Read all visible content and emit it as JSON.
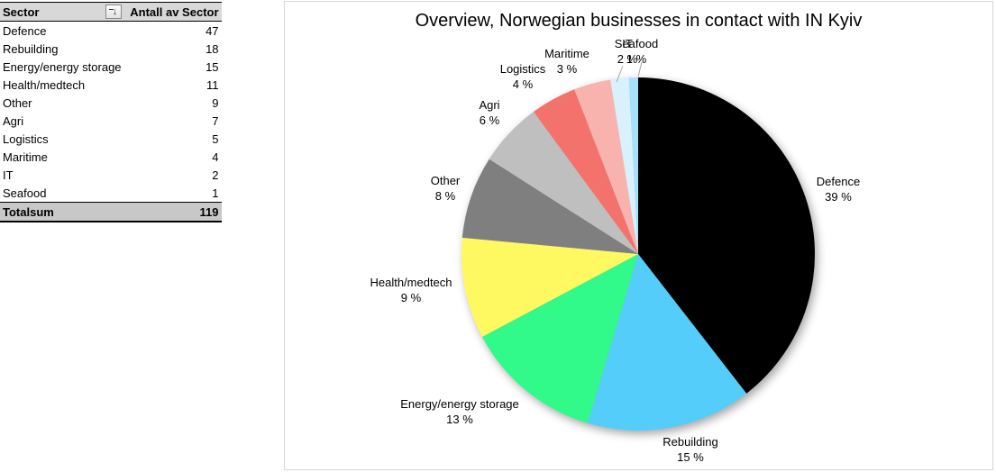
{
  "table": {
    "columns": [
      "Sector",
      "Antall av Sector"
    ],
    "rows": [
      {
        "label": "Defence",
        "value": "47"
      },
      {
        "label": "Rebuilding",
        "value": "18"
      },
      {
        "label": "Energy/energy storage",
        "value": "15"
      },
      {
        "label": "Health/medtech",
        "value": "11"
      },
      {
        "label": "Other",
        "value": "9"
      },
      {
        "label": "Agri",
        "value": "7"
      },
      {
        "label": "Logistics",
        "value": "5"
      },
      {
        "label": "Maritime",
        "value": "4"
      },
      {
        "label": "IT",
        "value": "2"
      },
      {
        "label": "Seafood",
        "value": "1"
      }
    ],
    "total": {
      "label": "Totalsum",
      "value": "119"
    },
    "sort_filter_icon": "↓"
  },
  "chart_data": {
    "type": "pie",
    "title": "Overview, Norwegian businesses in contact with IN Kyiv",
    "categories": [
      "Defence",
      "Rebuilding",
      "Energy/energy storage",
      "Health/medtech",
      "Other",
      "Agri",
      "Logistics",
      "Maritime",
      "IT",
      "Seafood"
    ],
    "values": [
      47,
      18,
      15,
      11,
      9,
      7,
      5,
      4,
      2,
      1
    ],
    "percent_labels": [
      "39 %",
      "15 %",
      "13 %",
      "9 %",
      "8 %",
      "6 %",
      "4 %",
      "3 %",
      "2 %",
      "1 %"
    ],
    "colors": [
      "#000000",
      "#55CDFA",
      "#31F98A",
      "#FFF961",
      "#7F7F7F",
      "#BFBFBF",
      "#F4726C",
      "#F9B3AE",
      "#D9F1FC",
      "#A5E1F8"
    ],
    "total": 119,
    "start_angle_deg": 0,
    "direction": "clockwise",
    "legend": false,
    "label_position": "outside"
  }
}
